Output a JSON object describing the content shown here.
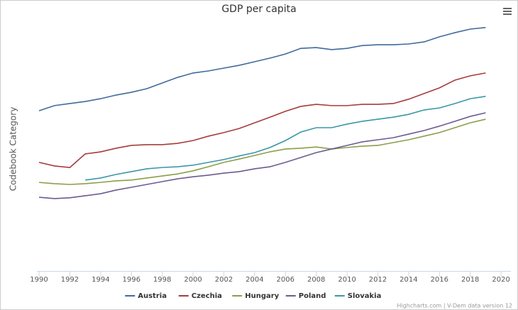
{
  "chart_data": {
    "type": "line",
    "title": "GDP per capita",
    "y_label": "Codebook Category",
    "credits": "Highcharts.com | V-Dem data version 12",
    "x": [
      1990,
      1991,
      1992,
      1993,
      1994,
      1995,
      1996,
      1997,
      1998,
      1999,
      2000,
      2001,
      2002,
      2003,
      2004,
      2005,
      2006,
      2007,
      2008,
      2009,
      2010,
      2011,
      2012,
      2013,
      2014,
      2015,
      2016,
      2017,
      2018,
      2019
    ],
    "xlim": [
      1989.86,
      2020.64
    ],
    "xticks": [
      1990,
      1992,
      1994,
      1996,
      1998,
      2000,
      2002,
      2004,
      2006,
      2008,
      2010,
      2012,
      2014,
      2016,
      2018,
      2020
    ],
    "ylim": [
      0,
      100
    ],
    "grid": false,
    "legend": "bottom",
    "series": [
      {
        "name": "Austria",
        "color": "#3f6b9c",
        "values": [
          62.4,
          64.4,
          65.2,
          66.0,
          67.1,
          68.5,
          69.6,
          71.0,
          73.2,
          75.4,
          77.1,
          77.9,
          79.0,
          80.1,
          81.5,
          82.9,
          84.5,
          86.7,
          87.0,
          86.2,
          86.7,
          87.8,
          88.1,
          88.1,
          88.4,
          89.2,
          91.2,
          92.8,
          94.2,
          94.8
        ]
      },
      {
        "name": "Czechia",
        "color": "#a63c3c",
        "values": [
          42.3,
          40.9,
          40.3,
          45.6,
          46.4,
          47.8,
          48.9,
          49.2,
          49.2,
          49.7,
          50.8,
          52.5,
          53.9,
          55.5,
          57.7,
          59.9,
          62.2,
          64.1,
          64.9,
          64.4,
          64.4,
          64.9,
          64.9,
          65.2,
          66.9,
          69.1,
          71.3,
          74.3,
          76.0,
          77.1
        ]
      },
      {
        "name": "Hungary",
        "color": "#8a9f48",
        "values": [
          34.5,
          34.0,
          33.7,
          34.0,
          34.5,
          35.1,
          35.4,
          36.2,
          37.0,
          37.8,
          39.0,
          40.6,
          42.3,
          43.6,
          45.0,
          46.4,
          47.5,
          47.8,
          48.3,
          47.5,
          48.1,
          48.6,
          48.9,
          50.0,
          51.1,
          52.5,
          53.9,
          55.8,
          57.7,
          59.1
        ]
      },
      {
        "name": "Poland",
        "color": "#6c5b90",
        "values": [
          28.7,
          28.2,
          28.5,
          29.3,
          30.1,
          31.5,
          32.6,
          33.7,
          34.8,
          35.9,
          36.7,
          37.3,
          38.1,
          38.7,
          39.8,
          40.6,
          42.3,
          44.2,
          46.1,
          47.5,
          48.9,
          50.3,
          51.1,
          51.9,
          53.3,
          54.7,
          56.4,
          58.3,
          60.2,
          61.6
        ]
      },
      {
        "name": "Slovakia",
        "color": "#3c96a8",
        "values": [
          null,
          null,
          null,
          35.4,
          36.2,
          37.6,
          38.7,
          39.8,
          40.3,
          40.6,
          41.2,
          42.3,
          43.4,
          44.8,
          46.1,
          48.1,
          50.8,
          54.1,
          55.8,
          55.8,
          57.2,
          58.3,
          59.1,
          59.9,
          61.0,
          62.7,
          63.5,
          65.2,
          67.1,
          68.0
        ]
      }
    ]
  }
}
